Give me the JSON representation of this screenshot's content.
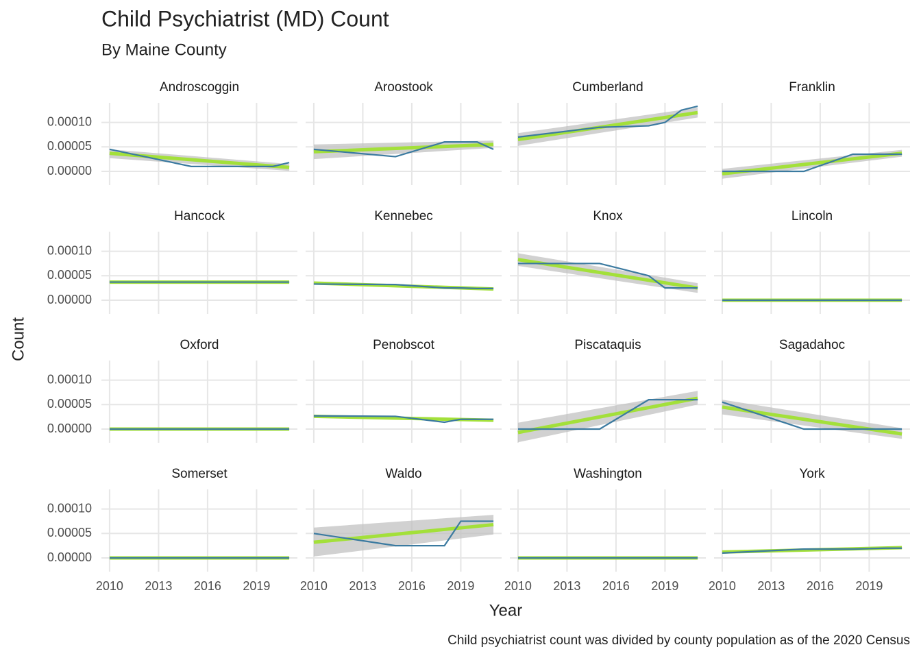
{
  "chart_data": {
    "type": "line",
    "title": "Child Psychiatrist (MD) Count",
    "subtitle": "By Maine County",
    "x_label": "Year",
    "y_label": "Count",
    "caption": "Child psychiatrist count was divided by county population as of the 2020 Census",
    "x": [
      2010,
      2015,
      2018,
      2019,
      2020,
      2021
    ],
    "fit_x": [
      2010,
      2021
    ],
    "xlim": [
      2009.5,
      2021.5
    ],
    "xticks": [
      2010,
      2013,
      2016,
      2019
    ],
    "ylim": [
      -2.8e-05,
      0.00014
    ],
    "yticks": [
      {
        "value": 0,
        "label": "0.00000"
      },
      {
        "value": 5e-05,
        "label": "0.00005"
      },
      {
        "value": 0.0001,
        "label": "0.00010"
      }
    ],
    "grid": true,
    "line_color": "#3b7aa0",
    "fit_color": "#a3e03a",
    "band_color": "#bdbdbd",
    "facets": [
      {
        "name": "Androscoggin",
        "values": [
          4.5e-05,
          1e-05,
          1e-05,
          1e-05,
          1e-05,
          1.8e-05
        ],
        "fit": [
          3.7e-05,
          8e-06
        ],
        "band_lo": [
          2.7e-05,
          1e-06
        ],
        "band_hi": [
          4.5e-05,
          1.5e-05
        ]
      },
      {
        "name": "Aroostook",
        "values": [
          4.5e-05,
          3e-05,
          6e-05,
          6e-05,
          6e-05,
          4.5e-05
        ],
        "fit": [
          4e-05,
          5.5e-05
        ],
        "band_lo": [
          2.5e-05,
          4.8e-05
        ],
        "band_hi": [
          5.5e-05,
          6.3e-05
        ]
      },
      {
        "name": "Cumberland",
        "values": [
          7e-05,
          9e-05,
          9.3e-05,
          0.0001,
          0.000125,
          0.000133
        ],
        "fit": [
          6.5e-05,
          0.00012
        ],
        "band_lo": [
          5.2e-05,
          0.00011
        ],
        "band_hi": [
          7.8e-05,
          0.00013
        ]
      },
      {
        "name": "Franklin",
        "values": [
          0,
          0,
          3.5e-05,
          3.5e-05,
          3.5e-05,
          3.5e-05
        ],
        "fit": [
          -5e-06,
          3.7e-05
        ],
        "band_lo": [
          -1.5e-05,
          3e-05
        ],
        "band_hi": [
          5e-06,
          4.4e-05
        ]
      },
      {
        "name": "Hancock",
        "values": [
          3.7e-05,
          3.7e-05,
          3.7e-05,
          3.7e-05,
          3.7e-05,
          3.7e-05
        ],
        "fit": [
          3.7e-05,
          3.7e-05
        ],
        "band_lo": [
          3.6e-05,
          3.6e-05
        ],
        "band_hi": [
          3.8e-05,
          3.8e-05
        ]
      },
      {
        "name": "Kennebec",
        "values": [
          3.3e-05,
          3.2e-05,
          2.5e-05,
          2.5e-05,
          2.4e-05,
          2.4e-05
        ],
        "fit": [
          3.5e-05,
          2.3e-05
        ],
        "band_lo": [
          3.3e-05,
          2.1e-05
        ],
        "band_hi": [
          3.7e-05,
          2.5e-05
        ]
      },
      {
        "name": "Knox",
        "values": [
          7.5e-05,
          7.5e-05,
          5e-05,
          2.5e-05,
          2.5e-05,
          2.5e-05
        ],
        "fit": [
          8.3e-05,
          2.5e-05
        ],
        "band_lo": [
          7e-05,
          1.5e-05
        ],
        "band_hi": [
          9.6e-05,
          3.5e-05
        ]
      },
      {
        "name": "Lincoln",
        "values": [
          0,
          0,
          0,
          0,
          0,
          0
        ],
        "fit": [
          0,
          0
        ],
        "band_lo": [
          -1e-06,
          -1e-06
        ],
        "band_hi": [
          1e-06,
          1e-06
        ]
      },
      {
        "name": "Oxford",
        "values": [
          0,
          0,
          0,
          0,
          0,
          0
        ],
        "fit": [
          0,
          0
        ],
        "band_lo": [
          -1e-06,
          -1e-06
        ],
        "band_hi": [
          1e-06,
          1e-06
        ]
      },
      {
        "name": "Penobscot",
        "values": [
          2.7e-05,
          2.6e-05,
          1.4e-05,
          2e-05,
          2e-05,
          2e-05
        ],
        "fit": [
          2.6e-05,
          1.8e-05
        ],
        "band_lo": [
          2.3e-05,
          1.5e-05
        ],
        "band_hi": [
          2.9e-05,
          2.1e-05
        ]
      },
      {
        "name": "Piscataquis",
        "values": [
          0,
          0,
          6e-05,
          6e-05,
          6e-05,
          6e-05
        ],
        "fit": [
          -7e-06,
          6.3e-05
        ],
        "band_lo": [
          -2.7e-05,
          5e-05
        ],
        "band_hi": [
          1.3e-05,
          7.8e-05
        ]
      },
      {
        "name": "Sagadahoc",
        "values": [
          5.5e-05,
          0,
          0,
          0,
          0,
          0
        ],
        "fit": [
          4.5e-05,
          -1e-05
        ],
        "band_lo": [
          3e-05,
          -2e-05
        ],
        "band_hi": [
          6e-05,
          2e-06
        ]
      },
      {
        "name": "Somerset",
        "values": [
          0,
          0,
          0,
          0,
          0,
          0
        ],
        "fit": [
          0,
          0
        ],
        "band_lo": [
          -1e-06,
          -1e-06
        ],
        "band_hi": [
          1e-06,
          1e-06
        ]
      },
      {
        "name": "Waldo",
        "values": [
          5e-05,
          2.5e-05,
          2.5e-05,
          7.5e-05,
          7.5e-05,
          7.5e-05
        ],
        "fit": [
          3.2e-05,
          6.8e-05
        ],
        "band_lo": [
          3e-06,
          4.8e-05
        ],
        "band_hi": [
          6.2e-05,
          8.8e-05
        ]
      },
      {
        "name": "Washington",
        "values": [
          0,
          0,
          0,
          0,
          0,
          0
        ],
        "fit": [
          0,
          0
        ],
        "band_lo": [
          -1e-06,
          -1e-06
        ],
        "band_hi": [
          1e-06,
          1e-06
        ]
      },
      {
        "name": "York",
        "values": [
          1e-05,
          1.8e-05,
          1.8e-05,
          1.9e-05,
          2e-05,
          2e-05
        ],
        "fit": [
          1.2e-05,
          2.1e-05
        ],
        "band_lo": [
          1e-05,
          1.9e-05
        ],
        "band_hi": [
          1.4e-05,
          2.3e-05
        ]
      }
    ]
  }
}
